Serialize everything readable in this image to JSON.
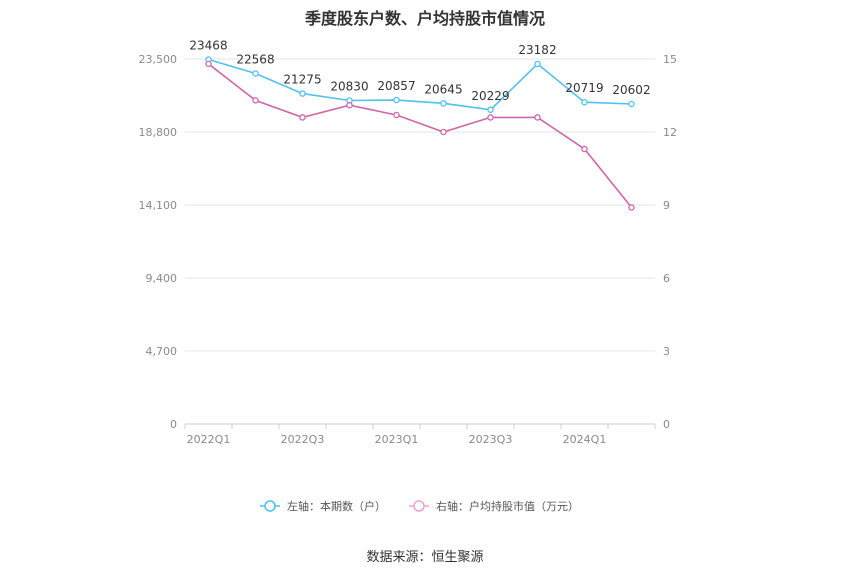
{
  "title": "季度股东户数、户均持股市值情况",
  "source": "数据来源：恒生聚源",
  "chart_data": {
    "type": "line",
    "x": [
      "2022Q1",
      "2022Q2",
      "2022Q3",
      "2022Q4",
      "2023Q1",
      "2023Q2",
      "2023Q3",
      "2023Q4",
      "2024Q1",
      "2024Q2"
    ],
    "x_tick_labels": [
      "2022Q1",
      "2022Q3",
      "2023Q1",
      "2023Q3",
      "2024Q1"
    ],
    "left_axis": {
      "ticks": [
        "0",
        "4,700",
        "9,400",
        "14,100",
        "18,800",
        "23,500"
      ],
      "ylim": [
        0,
        23500
      ]
    },
    "right_axis": {
      "ticks": [
        "0",
        "3",
        "6",
        "9",
        "12",
        "15"
      ],
      "ylim": [
        0,
        15
      ]
    },
    "grid": true,
    "legend_position": "bottom",
    "series": [
      {
        "name": "左轴：本期数（户）",
        "axis": "left",
        "color": "#4fc1ee",
        "values": [
          23468,
          22568,
          21275,
          20830,
          20857,
          20645,
          20229,
          23182,
          20719,
          20602
        ],
        "labels": [
          "23468",
          "22568",
          "21275",
          "20830",
          "20857",
          "20645",
          "20229",
          "23182",
          "20719",
          "20602"
        ]
      },
      {
        "name": "右轴：户均持股市值（万元）",
        "axis": "right",
        "color": "#d065a8",
        "values": [
          14.8,
          13.3,
          12.6,
          13.1,
          12.7,
          12.0,
          12.6,
          12.6,
          11.3,
          8.9
        ]
      }
    ]
  }
}
